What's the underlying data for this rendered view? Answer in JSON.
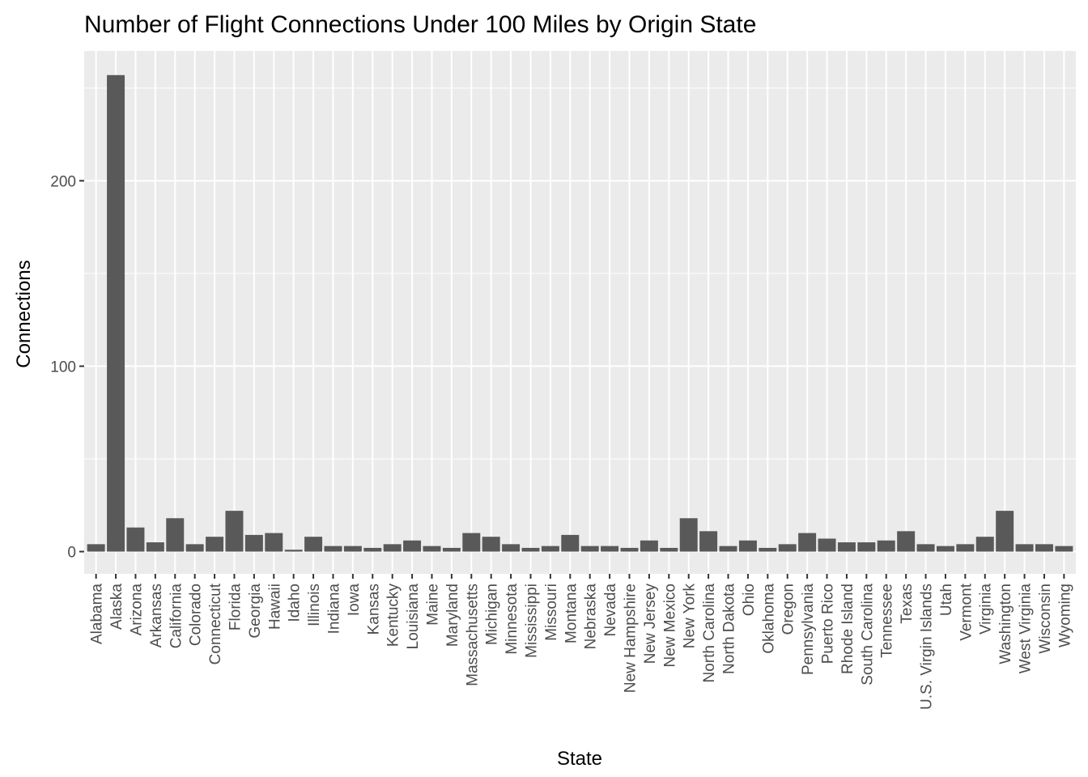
{
  "chart_data": {
    "type": "bar",
    "title": "Number of Flight Connections Under 100 Miles by Origin State",
    "xlabel": "State",
    "ylabel": "Connections",
    "ylim": [
      -12,
      270
    ],
    "yticks": [
      0,
      100,
      200
    ],
    "grid": true,
    "bar_color": "#595959",
    "panel_color": "#ebebeb",
    "categories": [
      "Alabama",
      "Alaska",
      "Arizona",
      "Arkansas",
      "California",
      "Colorado",
      "Connecticut",
      "Florida",
      "Georgia",
      "Hawaii",
      "Idaho",
      "Illinois",
      "Indiana",
      "Iowa",
      "Kansas",
      "Kentucky",
      "Louisiana",
      "Maine",
      "Maryland",
      "Massachusetts",
      "Michigan",
      "Minnesota",
      "Mississippi",
      "Missouri",
      "Montana",
      "Nebraska",
      "Nevada",
      "New Hampshire",
      "New Jersey",
      "New Mexico",
      "New York",
      "North Carolina",
      "North Dakota",
      "Ohio",
      "Oklahoma",
      "Oregon",
      "Pennsylvania",
      "Puerto Rico",
      "Rhode Island",
      "South Carolina",
      "Tennessee",
      "Texas",
      "U.S. Virgin Islands",
      "Utah",
      "Vermont",
      "Virginia",
      "Washington",
      "West Virginia",
      "Wisconsin",
      "Wyoming"
    ],
    "values": [
      4,
      257,
      13,
      5,
      18,
      4,
      8,
      22,
      9,
      10,
      1,
      8,
      3,
      3,
      2,
      4,
      6,
      3,
      2,
      10,
      8,
      4,
      2,
      3,
      9,
      3,
      3,
      2,
      6,
      2,
      18,
      11,
      3,
      6,
      2,
      4,
      10,
      7,
      5,
      5,
      6,
      11,
      4,
      3,
      4,
      8,
      22,
      4,
      4,
      3
    ]
  }
}
